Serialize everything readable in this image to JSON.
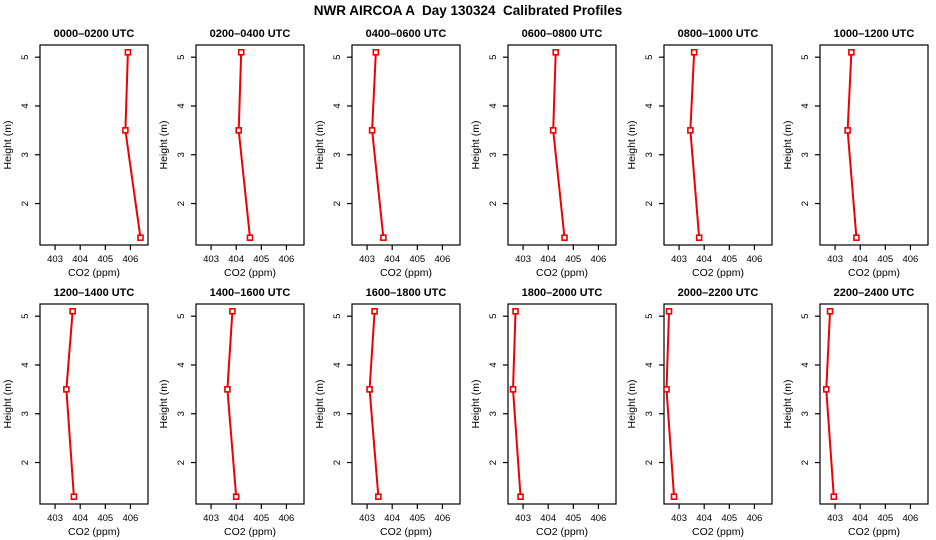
{
  "title": "NWR AIRCOA A  Day 130324  Calibrated Profiles",
  "colors": {
    "line": "#ee0000",
    "marker_fill": "#ffffff",
    "axis": "#000000",
    "background": "#ffffff"
  },
  "chart_data": {
    "type": "line",
    "layout": "small-multiples 2 rows x 6 cols",
    "xlabel": "CO2 (ppm)",
    "ylabel": "Height (m)",
    "xlim": [
      402.4,
      406.7
    ],
    "ylim": [
      1.15,
      5.25
    ],
    "xticks": [
      403,
      404,
      405,
      406
    ],
    "yticks": [
      2,
      3,
      4,
      5
    ],
    "grid": false,
    "legend": "none",
    "heights_m": [
      5.1,
      3.5,
      1.3
    ],
    "panels": [
      {
        "title": "0000–0200 UTC",
        "co2_ppm": [
          405.9,
          405.8,
          406.4
        ]
      },
      {
        "title": "0200–0400 UTC",
        "co2_ppm": [
          404.2,
          404.1,
          404.55
        ]
      },
      {
        "title": "0400–0600 UTC",
        "co2_ppm": [
          403.35,
          403.2,
          403.65
        ]
      },
      {
        "title": "0600–0800 UTC",
        "co2_ppm": [
          404.3,
          404.2,
          404.65
        ]
      },
      {
        "title": "0800–1000 UTC",
        "co2_ppm": [
          403.6,
          403.45,
          403.8
        ]
      },
      {
        "title": "1000–1200 UTC",
        "co2_ppm": [
          403.65,
          403.5,
          403.85
        ]
      },
      {
        "title": "1200–1400 UTC",
        "co2_ppm": [
          403.7,
          403.45,
          403.75
        ]
      },
      {
        "title": "1400–1600 UTC",
        "co2_ppm": [
          403.85,
          403.65,
          404.0
        ]
      },
      {
        "title": "1600–1800 UTC",
        "co2_ppm": [
          403.3,
          403.1,
          403.45
        ]
      },
      {
        "title": "1800–2000 UTC",
        "co2_ppm": [
          402.7,
          402.6,
          402.9
        ]
      },
      {
        "title": "2000–2200 UTC",
        "co2_ppm": [
          402.6,
          402.5,
          402.8
        ]
      },
      {
        "title": "2200–2400 UTC",
        "co2_ppm": [
          402.8,
          402.65,
          402.95
        ]
      }
    ]
  }
}
